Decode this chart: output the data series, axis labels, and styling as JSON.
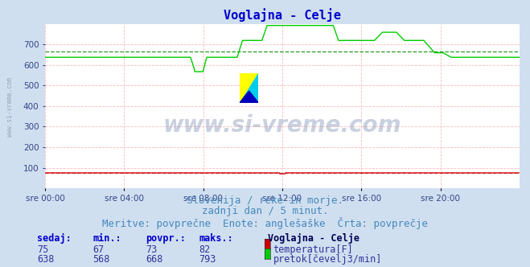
{
  "title": "Voglajna - Celje",
  "title_color": "#0000cc",
  "bg_color": "#d0dff0",
  "plot_bg_color": "#ffffff",
  "grid_color": "#ffaaaa",
  "xticklabels": [
    "sre 00:00",
    "sre 04:00",
    "sre 08:00",
    "sre 12:00",
    "sre 16:00",
    "sre 20:00"
  ],
  "xtick_positions": [
    0,
    288,
    576,
    864,
    1152,
    1440
  ],
  "total_points": 1728,
  "ylim": [
    0,
    800
  ],
  "yticks": [
    100,
    200,
    300,
    400,
    500,
    600,
    700
  ],
  "subtitle_lines": [
    "Slovenija / reke in morje.",
    "zadnji dan / 5 minut.",
    "Meritve: povprečne  Enote: anglešaške  Črta: povprečje"
  ],
  "subtitle_color": "#4488bb",
  "subtitle_fontsize": 9,
  "temp_color": "#cc0000",
  "flow_color": "#00cc00",
  "avg_flow_color": "#008800",
  "avg_temp_color": "#cc0000",
  "temp_avg": 73,
  "flow_avg": 668,
  "table_headers": [
    "sedaj:",
    "min.:",
    "povpr.:",
    "maks.:"
  ],
  "table_header_color": "#0000cc",
  "table_values_color": "#333399",
  "temp_row": [
    75,
    67,
    73,
    82
  ],
  "flow_row": [
    638,
    568,
    668,
    793
  ],
  "legend_title": "Voglajna - Celje",
  "legend_title_color": "#000055",
  "legend_temp_label": "temperatura[F]",
  "legend_flow_label": "pretok[čevelj3/min]",
  "legend_color": "#333399",
  "left_label": "www.si-vreme.com"
}
